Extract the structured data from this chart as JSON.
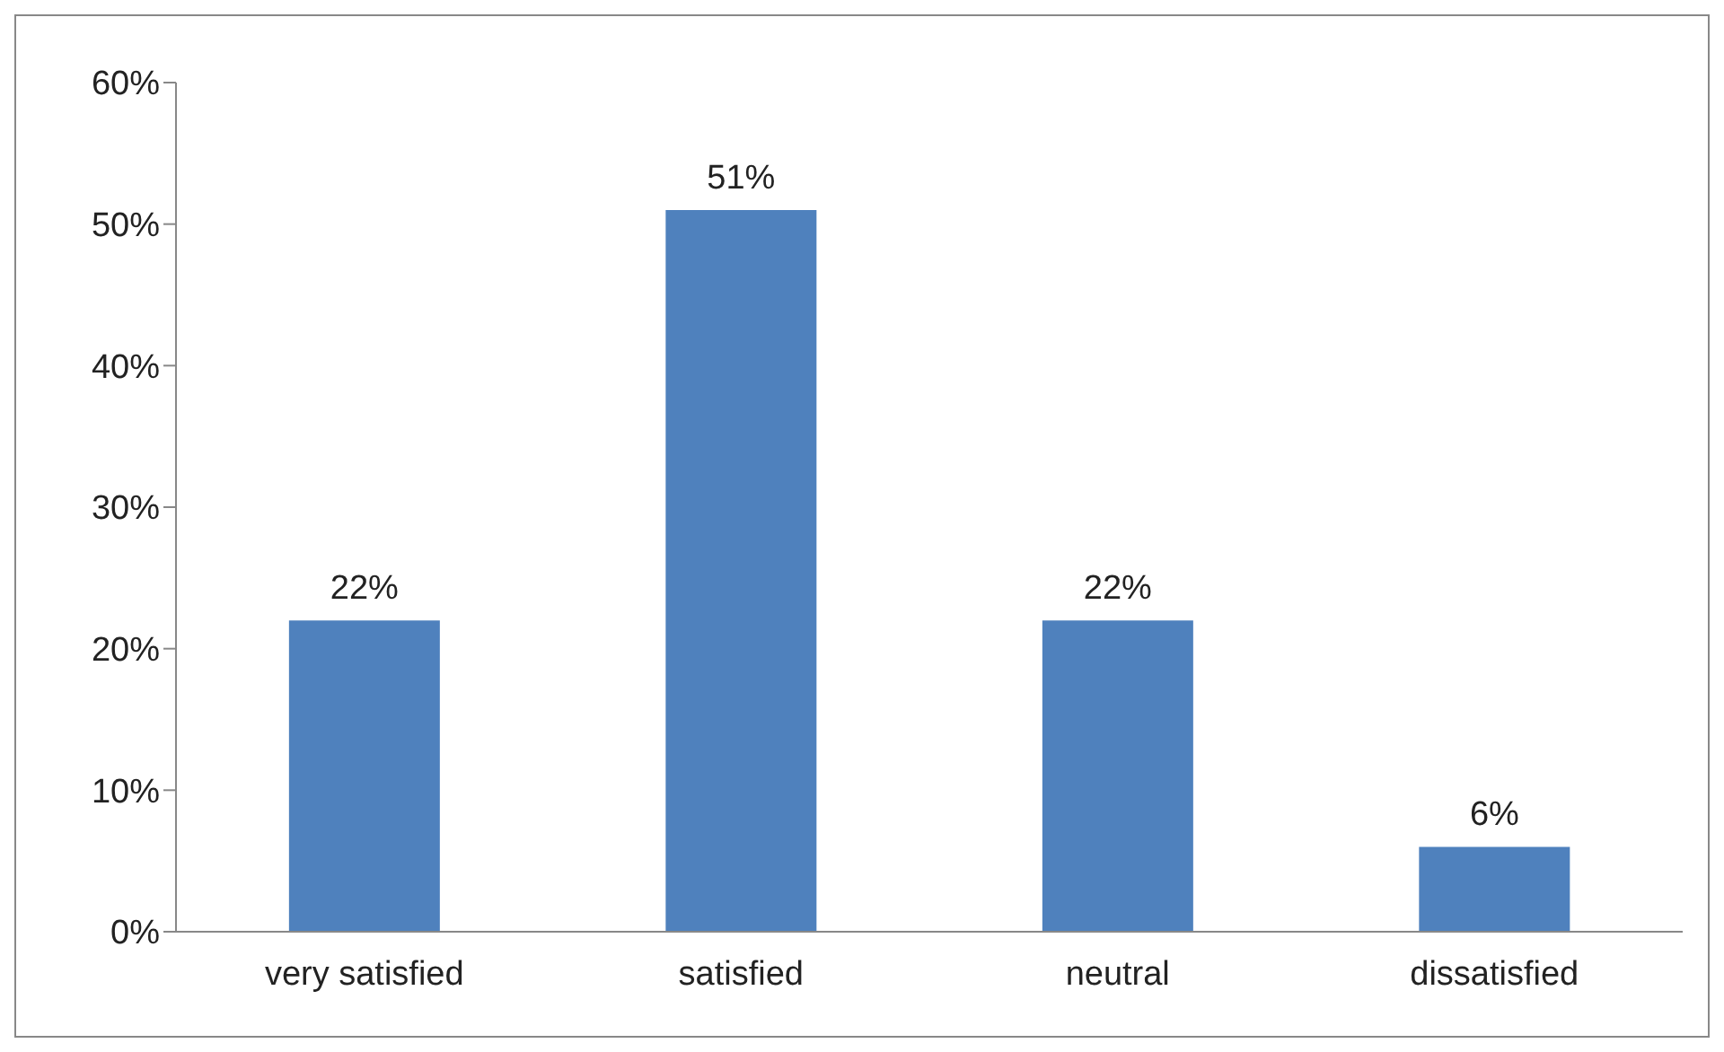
{
  "chart_data": {
    "type": "bar",
    "categories": [
      "very satisfied",
      "satisfied",
      "neutral",
      "dissatisfied"
    ],
    "values": [
      22,
      51,
      22,
      6
    ],
    "color": "#4f81bd",
    "value_labels": [
      "22%",
      "51%",
      "22%",
      "6%"
    ],
    "ylim": [
      0,
      60
    ],
    "yticks": [
      {
        "value": 0,
        "label": "0%"
      },
      {
        "value": 10,
        "label": "10%"
      },
      {
        "value": 20,
        "label": "20%"
      },
      {
        "value": 30,
        "label": "30%"
      },
      {
        "value": 40,
        "label": "40%"
      },
      {
        "value": 50,
        "label": "50%"
      },
      {
        "value": 60,
        "label": "60%"
      }
    ],
    "grid": false,
    "legend": false
  }
}
